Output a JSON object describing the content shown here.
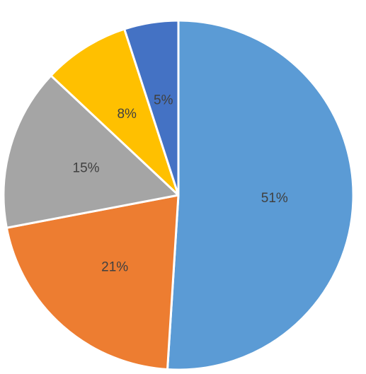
{
  "chart_data": {
    "type": "pie",
    "title": "",
    "start_angle_deg": 0,
    "direction": "clockwise",
    "slices": [
      {
        "value": 51,
        "label": "51%",
        "color": "#5B9BD5"
      },
      {
        "value": 21,
        "label": "21%",
        "color": "#ED7D31"
      },
      {
        "value": 15,
        "label": "15%",
        "color": "#A5A5A5"
      },
      {
        "value": 8,
        "label": "8%",
        "color": "#FFC000"
      },
      {
        "value": 5,
        "label": "5%",
        "color": "#4472C4"
      }
    ],
    "slice_border_color": "#FFFFFF",
    "label_color": "#404040",
    "legend": "none"
  }
}
